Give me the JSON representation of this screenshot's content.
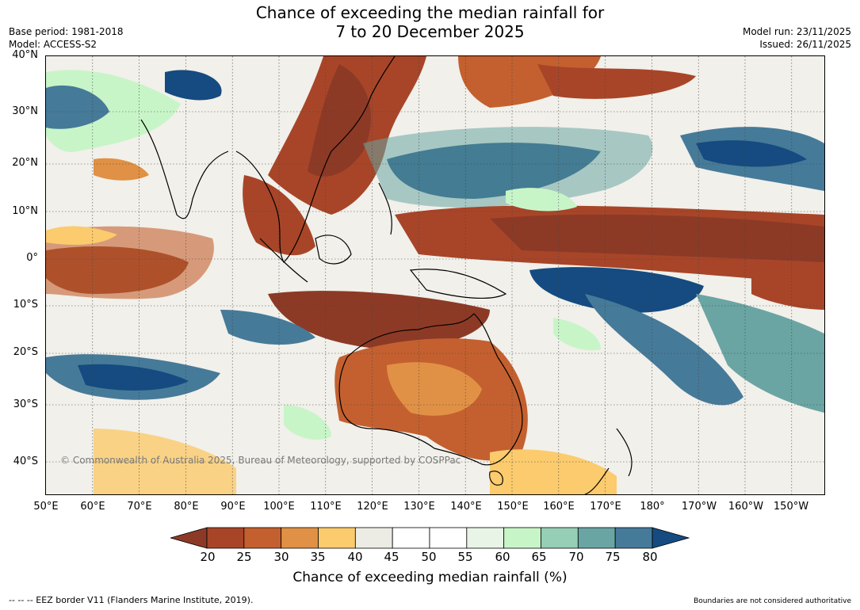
{
  "title": {
    "line1": "Chance of exceeding the median rainfall for",
    "line2": "7 to 20 December 2025"
  },
  "meta": {
    "base_period": "Base period: 1981-2018",
    "model": "Model: ACCESS-S2",
    "model_run": "Model run: 23/11/2025",
    "issued": "Issued: 26/11/2025"
  },
  "map": {
    "lat_labels": [
      "40°N",
      "30°N",
      "20°N",
      "10°N",
      "0°",
      "10°S",
      "20°S",
      "30°S",
      "40°S"
    ],
    "lon_labels": [
      "50°E",
      "60°E",
      "70°E",
      "80°E",
      "90°E",
      "100°E",
      "110°E",
      "120°E",
      "130°E",
      "140°E",
      "150°E",
      "160°E",
      "170°E",
      "180°",
      "170°W",
      "160°W",
      "150°W"
    ],
    "copyright": "© Commonwealth of Australia 2025, Bureau of Meteorology, supported by COSPPac"
  },
  "colorbar": {
    "title": "Chance of exceeding median rainfall (%)",
    "ticks": [
      "20",
      "25",
      "30",
      "35",
      "40",
      "45",
      "50",
      "55",
      "60",
      "65",
      "70",
      "75",
      "80"
    ],
    "colors": {
      "below_20": "#8c3a26",
      "bins": [
        "#a84528",
        "#c4602f",
        "#e09145",
        "#fbcb6d",
        "#ecebe4",
        "#ffffff",
        "#ffffff",
        "#e7f4e6",
        "#c8f5c8",
        "#96cfb6",
        "#6aa5a3",
        "#467a99"
      ],
      "above_80": "#154b80"
    }
  },
  "footer": {
    "eez_note": "--  --  -- EEZ border V11 (Flanders Marine Institute, 2019).",
    "boundary_note": "Boundaries are not considered authoritative"
  }
}
